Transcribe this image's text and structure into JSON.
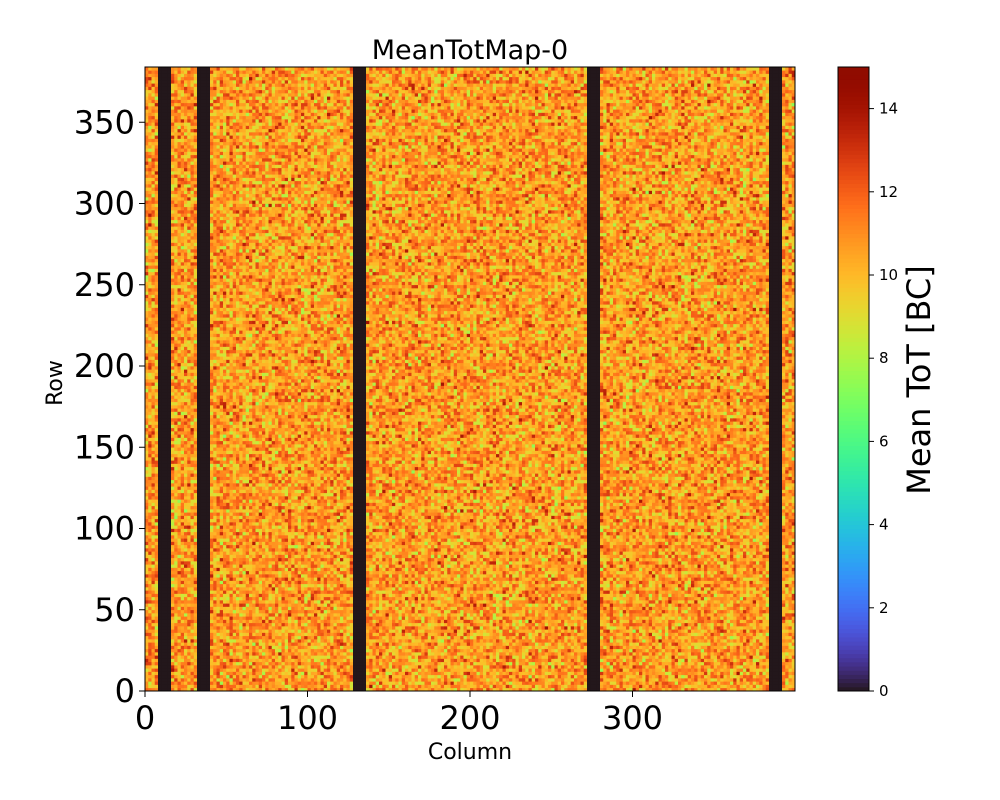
{
  "chart_data": {
    "type": "heatmap",
    "title": "MeanTotMap-0",
    "xlabel": "Column",
    "ylabel": "Row",
    "x_range": [
      0,
      400
    ],
    "y_range": [
      0,
      384
    ],
    "x_ticks": [
      0,
      100,
      200,
      300
    ],
    "y_ticks": [
      0,
      50,
      100,
      150,
      200,
      250,
      300,
      350
    ],
    "colorbar": {
      "label": "Mean ToT [BC]",
      "range": [
        0,
        15
      ],
      "ticks": [
        0,
        2,
        4,
        6,
        8,
        10,
        12,
        14
      ],
      "colormap": "turbo"
    },
    "typical_value_range": [
      7,
      14
    ],
    "typical_mean": 10.7,
    "dead_column_bands": [
      {
        "start": 8,
        "end": 16,
        "value": 0
      },
      {
        "start": 32,
        "end": 40,
        "value": 0
      },
      {
        "start": 128,
        "end": 136,
        "value": 0
      },
      {
        "start": 272,
        "end": 280,
        "value": 0
      },
      {
        "start": 384,
        "end": 392,
        "value": 0
      }
    ]
  }
}
